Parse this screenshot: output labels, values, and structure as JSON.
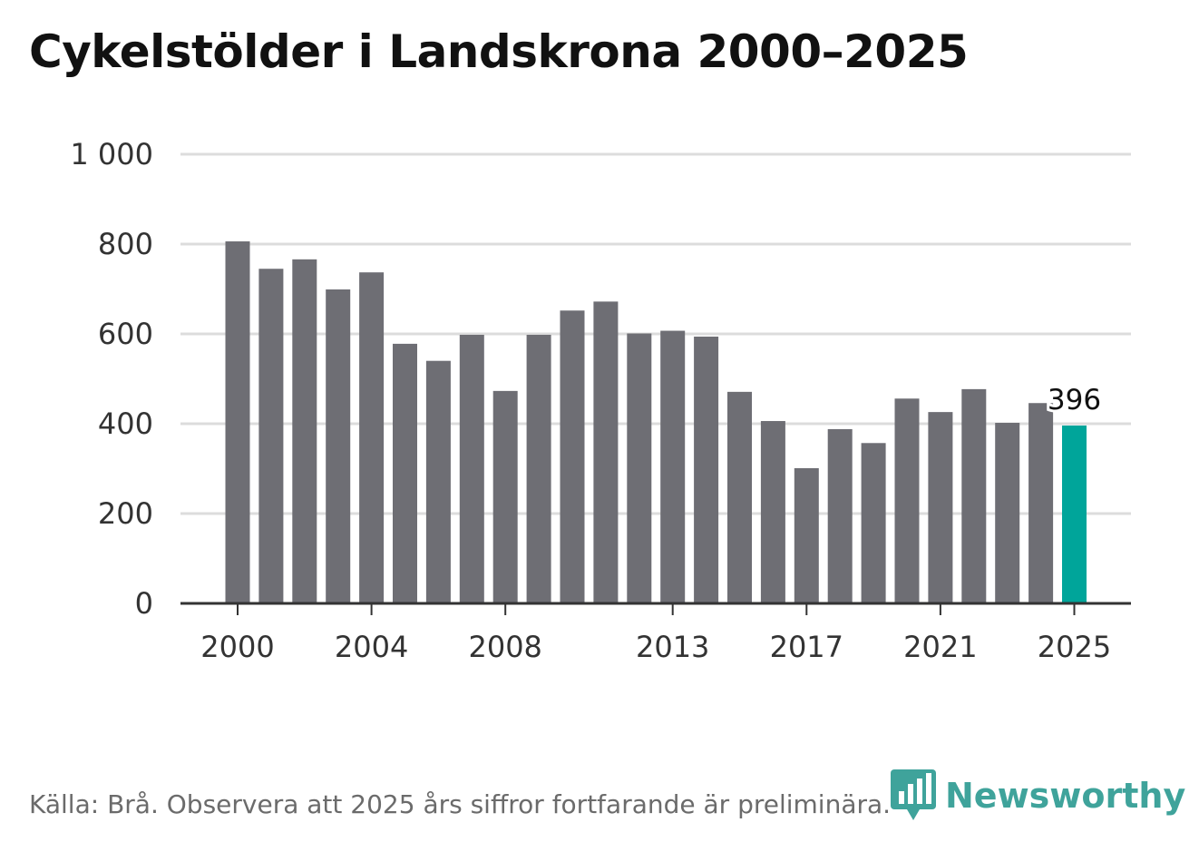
{
  "page": {
    "title": "Cykelstölder i Landskrona 2000–2025",
    "footer": "Källa: Brå. Observera att 2025 års siffror fortfarande är preliminära.",
    "brand": "Newsworthy"
  },
  "colors": {
    "bar": "#6e6e74",
    "highlight": "#00a59a",
    "grid": "#dcdcdc",
    "axis": "#333333",
    "brand": "#3fa39b"
  },
  "chart_data": {
    "type": "bar",
    "title": "Cykelstölder i Landskrona 2000–2025",
    "xlabel": "",
    "ylabel": "",
    "ylim": [
      0,
      1000
    ],
    "y_ticks": [
      0,
      200,
      400,
      600,
      800,
      1000
    ],
    "y_tick_labels": [
      "0",
      "200",
      "400",
      "600",
      "800",
      "1 000"
    ],
    "categories": [
      "2000",
      "2001",
      "2002",
      "2003",
      "2004",
      "2005",
      "2006",
      "2007",
      "2008",
      "2009",
      "2010",
      "2011",
      "2012",
      "2013",
      "2014",
      "2015",
      "2016",
      "2017",
      "2018",
      "2019",
      "2020",
      "2021",
      "2022",
      "2023",
      "2024",
      "2025"
    ],
    "values": [
      806,
      745,
      766,
      699,
      737,
      578,
      540,
      598,
      473,
      598,
      652,
      672,
      601,
      607,
      594,
      471,
      406,
      301,
      388,
      357,
      456,
      426,
      477,
      402,
      446,
      396
    ],
    "x_tick_labels": [
      "2000",
      "2004",
      "2008",
      "2013",
      "2017",
      "2021",
      "2025"
    ],
    "highlight": {
      "category": "2025",
      "label": "396"
    }
  }
}
